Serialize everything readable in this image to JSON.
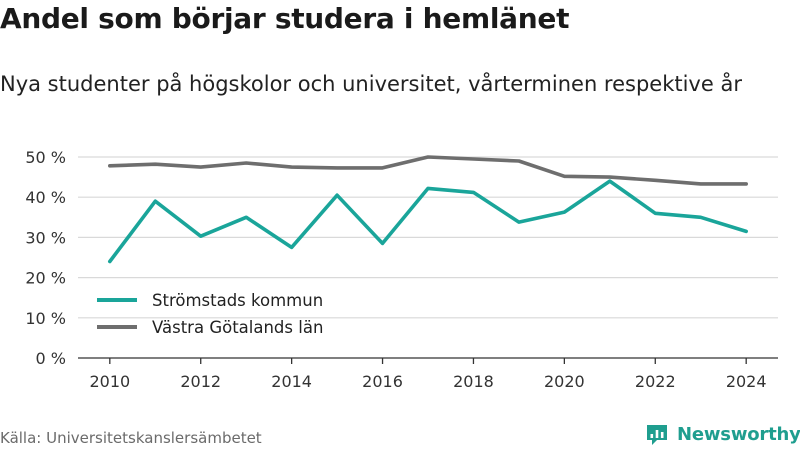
{
  "page": {
    "title": "Andel som börjar studera i hemlänet",
    "subtitle": "Nya studenter på högskolor och universitet, vårterminen respektive år",
    "source": "Källa: Universitetskanslersämbetet",
    "brand": "Newsworthy"
  },
  "colors": {
    "series_1": "#1aa59a",
    "series_2": "#6e6e6e",
    "grid": "#d9d9d9",
    "axis": "#333333",
    "brand": "#1f9e8f"
  },
  "chart_data": {
    "type": "line",
    "x": [
      2010,
      2011,
      2012,
      2013,
      2014,
      2015,
      2016,
      2017,
      2018,
      2019,
      2020,
      2021,
      2022,
      2023,
      2024
    ],
    "series": [
      {
        "name": "Strömstads kommun",
        "values": [
          24,
          39,
          30.3,
          35,
          27.5,
          40.5,
          28.5,
          42.2,
          41.2,
          33.8,
          36.3,
          44,
          36,
          35,
          31.5
        ]
      },
      {
        "name": "Västra Götalands län",
        "values": [
          47.8,
          48.2,
          47.5,
          48.5,
          47.5,
          47.3,
          47.3,
          50,
          49.5,
          49,
          45.2,
          45,
          44.2,
          43.3,
          43.3
        ]
      }
    ],
    "xticks": [
      "2010",
      "2012",
      "2014",
      "2016",
      "2018",
      "2020",
      "2022",
      "2024"
    ],
    "yticks": [
      "0 %",
      "10 %",
      "20 %",
      "30 %",
      "40 %",
      "50 %"
    ],
    "ylim": [
      0,
      50
    ],
    "xlim": [
      2009.3,
      2024.7
    ],
    "grid": true,
    "legend_position": "bottom-left"
  }
}
